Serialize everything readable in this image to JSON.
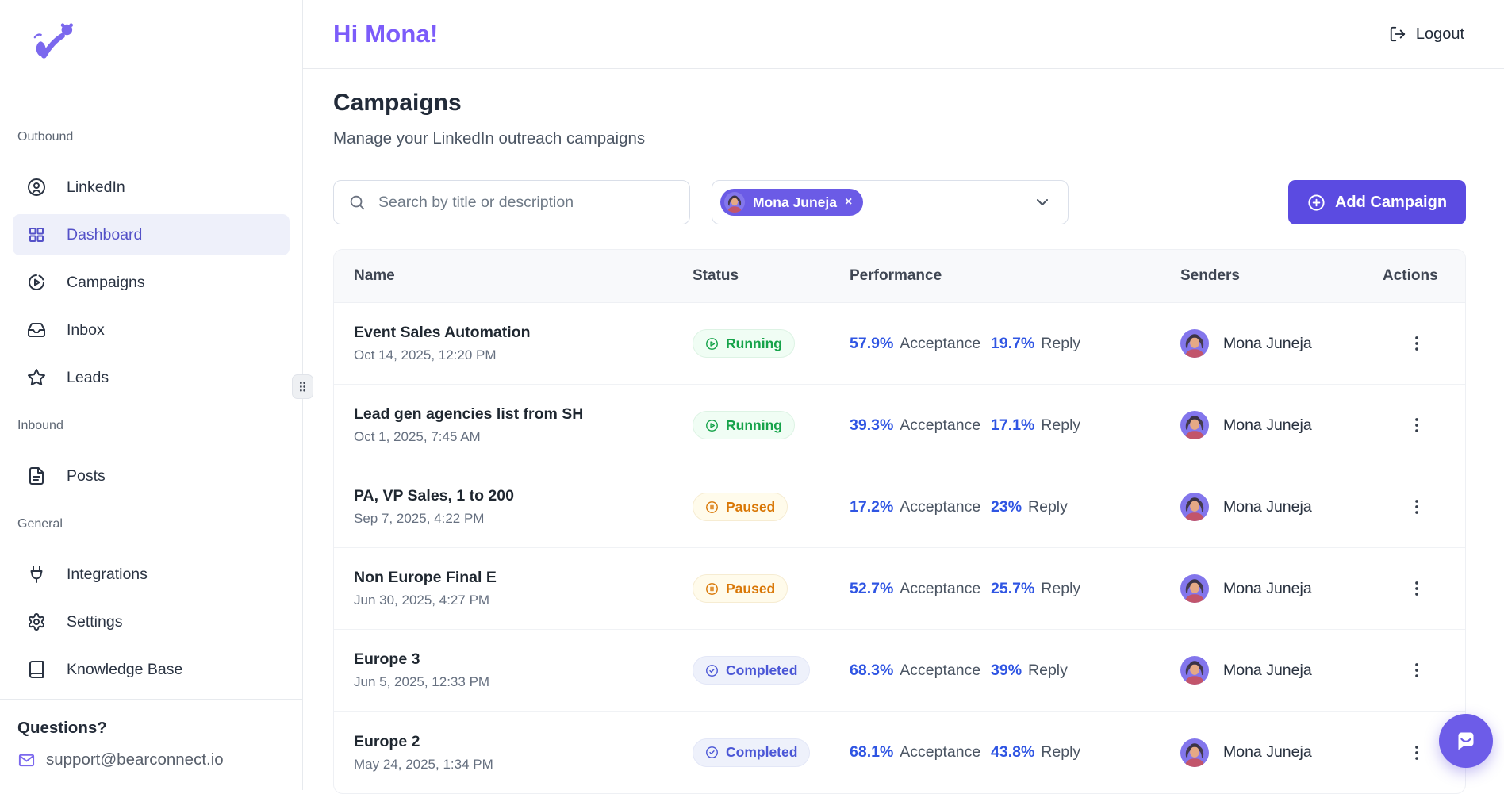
{
  "colors": {
    "accent_purple": "#6B5BE6",
    "button_purple": "#5B4BE1",
    "heading_purple": "#7C5CFA",
    "metric_blue": "#2F55E3",
    "running_green": "#16A34A",
    "paused_orange": "#D97706",
    "completed_indigo": "#4A56D6",
    "chat_bubble_purple": "#6D5CE8"
  },
  "sidebar": {
    "sections": [
      {
        "label": "Outbound",
        "items": [
          {
            "label": "LinkedIn",
            "icon": "user-circle",
            "active": false
          },
          {
            "label": "Dashboard",
            "icon": "dashboard-grid",
            "active": true
          },
          {
            "label": "Campaigns",
            "icon": "campaign-gauge",
            "active": false
          },
          {
            "label": "Inbox",
            "icon": "inbox",
            "active": false
          },
          {
            "label": "Leads",
            "icon": "star",
            "active": false
          }
        ]
      },
      {
        "label": "Inbound",
        "items": [
          {
            "label": "Posts",
            "icon": "file-text",
            "active": false
          }
        ]
      },
      {
        "label": "General",
        "items": [
          {
            "label": "Integrations",
            "icon": "plug",
            "active": false
          },
          {
            "label": "Settings",
            "icon": "gear",
            "active": false
          },
          {
            "label": "Knowledge Base",
            "icon": "book",
            "active": false
          }
        ]
      }
    ],
    "footer": {
      "heading": "Questions?",
      "email": "support@bearconnect.io"
    }
  },
  "header": {
    "greeting": "Hi Mona!",
    "logout_label": "Logout"
  },
  "page": {
    "title": "Campaigns",
    "subtitle": "Manage your LinkedIn outreach campaigns"
  },
  "controls": {
    "search_placeholder": "Search by title or description",
    "search_value": "",
    "sender_filter": {
      "selected": "Mona Juneja",
      "remove_label": "×"
    },
    "add_campaign_label": "Add Campaign"
  },
  "table": {
    "columns": [
      "Name",
      "Status",
      "Performance",
      "Senders",
      "Actions"
    ],
    "metric_labels": {
      "acceptance": "Acceptance",
      "reply": "Reply"
    },
    "rows": [
      {
        "name": "Event Sales Automation",
        "created": "Oct 14, 2025, 12:20 PM",
        "status": "Running",
        "acceptance": "57.9%",
        "reply": "19.7%",
        "sender": "Mona Juneja"
      },
      {
        "name": "Lead gen agencies list from SH",
        "created": "Oct 1, 2025, 7:45 AM",
        "status": "Running",
        "acceptance": "39.3%",
        "reply": "17.1%",
        "sender": "Mona Juneja"
      },
      {
        "name": "PA, VP Sales, 1 to 200",
        "created": "Sep 7, 2025, 4:22 PM",
        "status": "Paused",
        "acceptance": "17.2%",
        "reply": "23%",
        "sender": "Mona Juneja"
      },
      {
        "name": "Non Europe Final E",
        "created": "Jun 30, 2025, 4:27 PM",
        "status": "Paused",
        "acceptance": "52.7%",
        "reply": "25.7%",
        "sender": "Mona Juneja"
      },
      {
        "name": "Europe 3",
        "created": "Jun 5, 2025, 12:33 PM",
        "status": "Completed",
        "acceptance": "68.3%",
        "reply": "39%",
        "sender": "Mona Juneja"
      },
      {
        "name": "Europe 2",
        "created": "May 24, 2025, 1:34 PM",
        "status": "Completed",
        "acceptance": "68.1%",
        "reply": "43.8%",
        "sender": "Mona Juneja"
      }
    ]
  }
}
